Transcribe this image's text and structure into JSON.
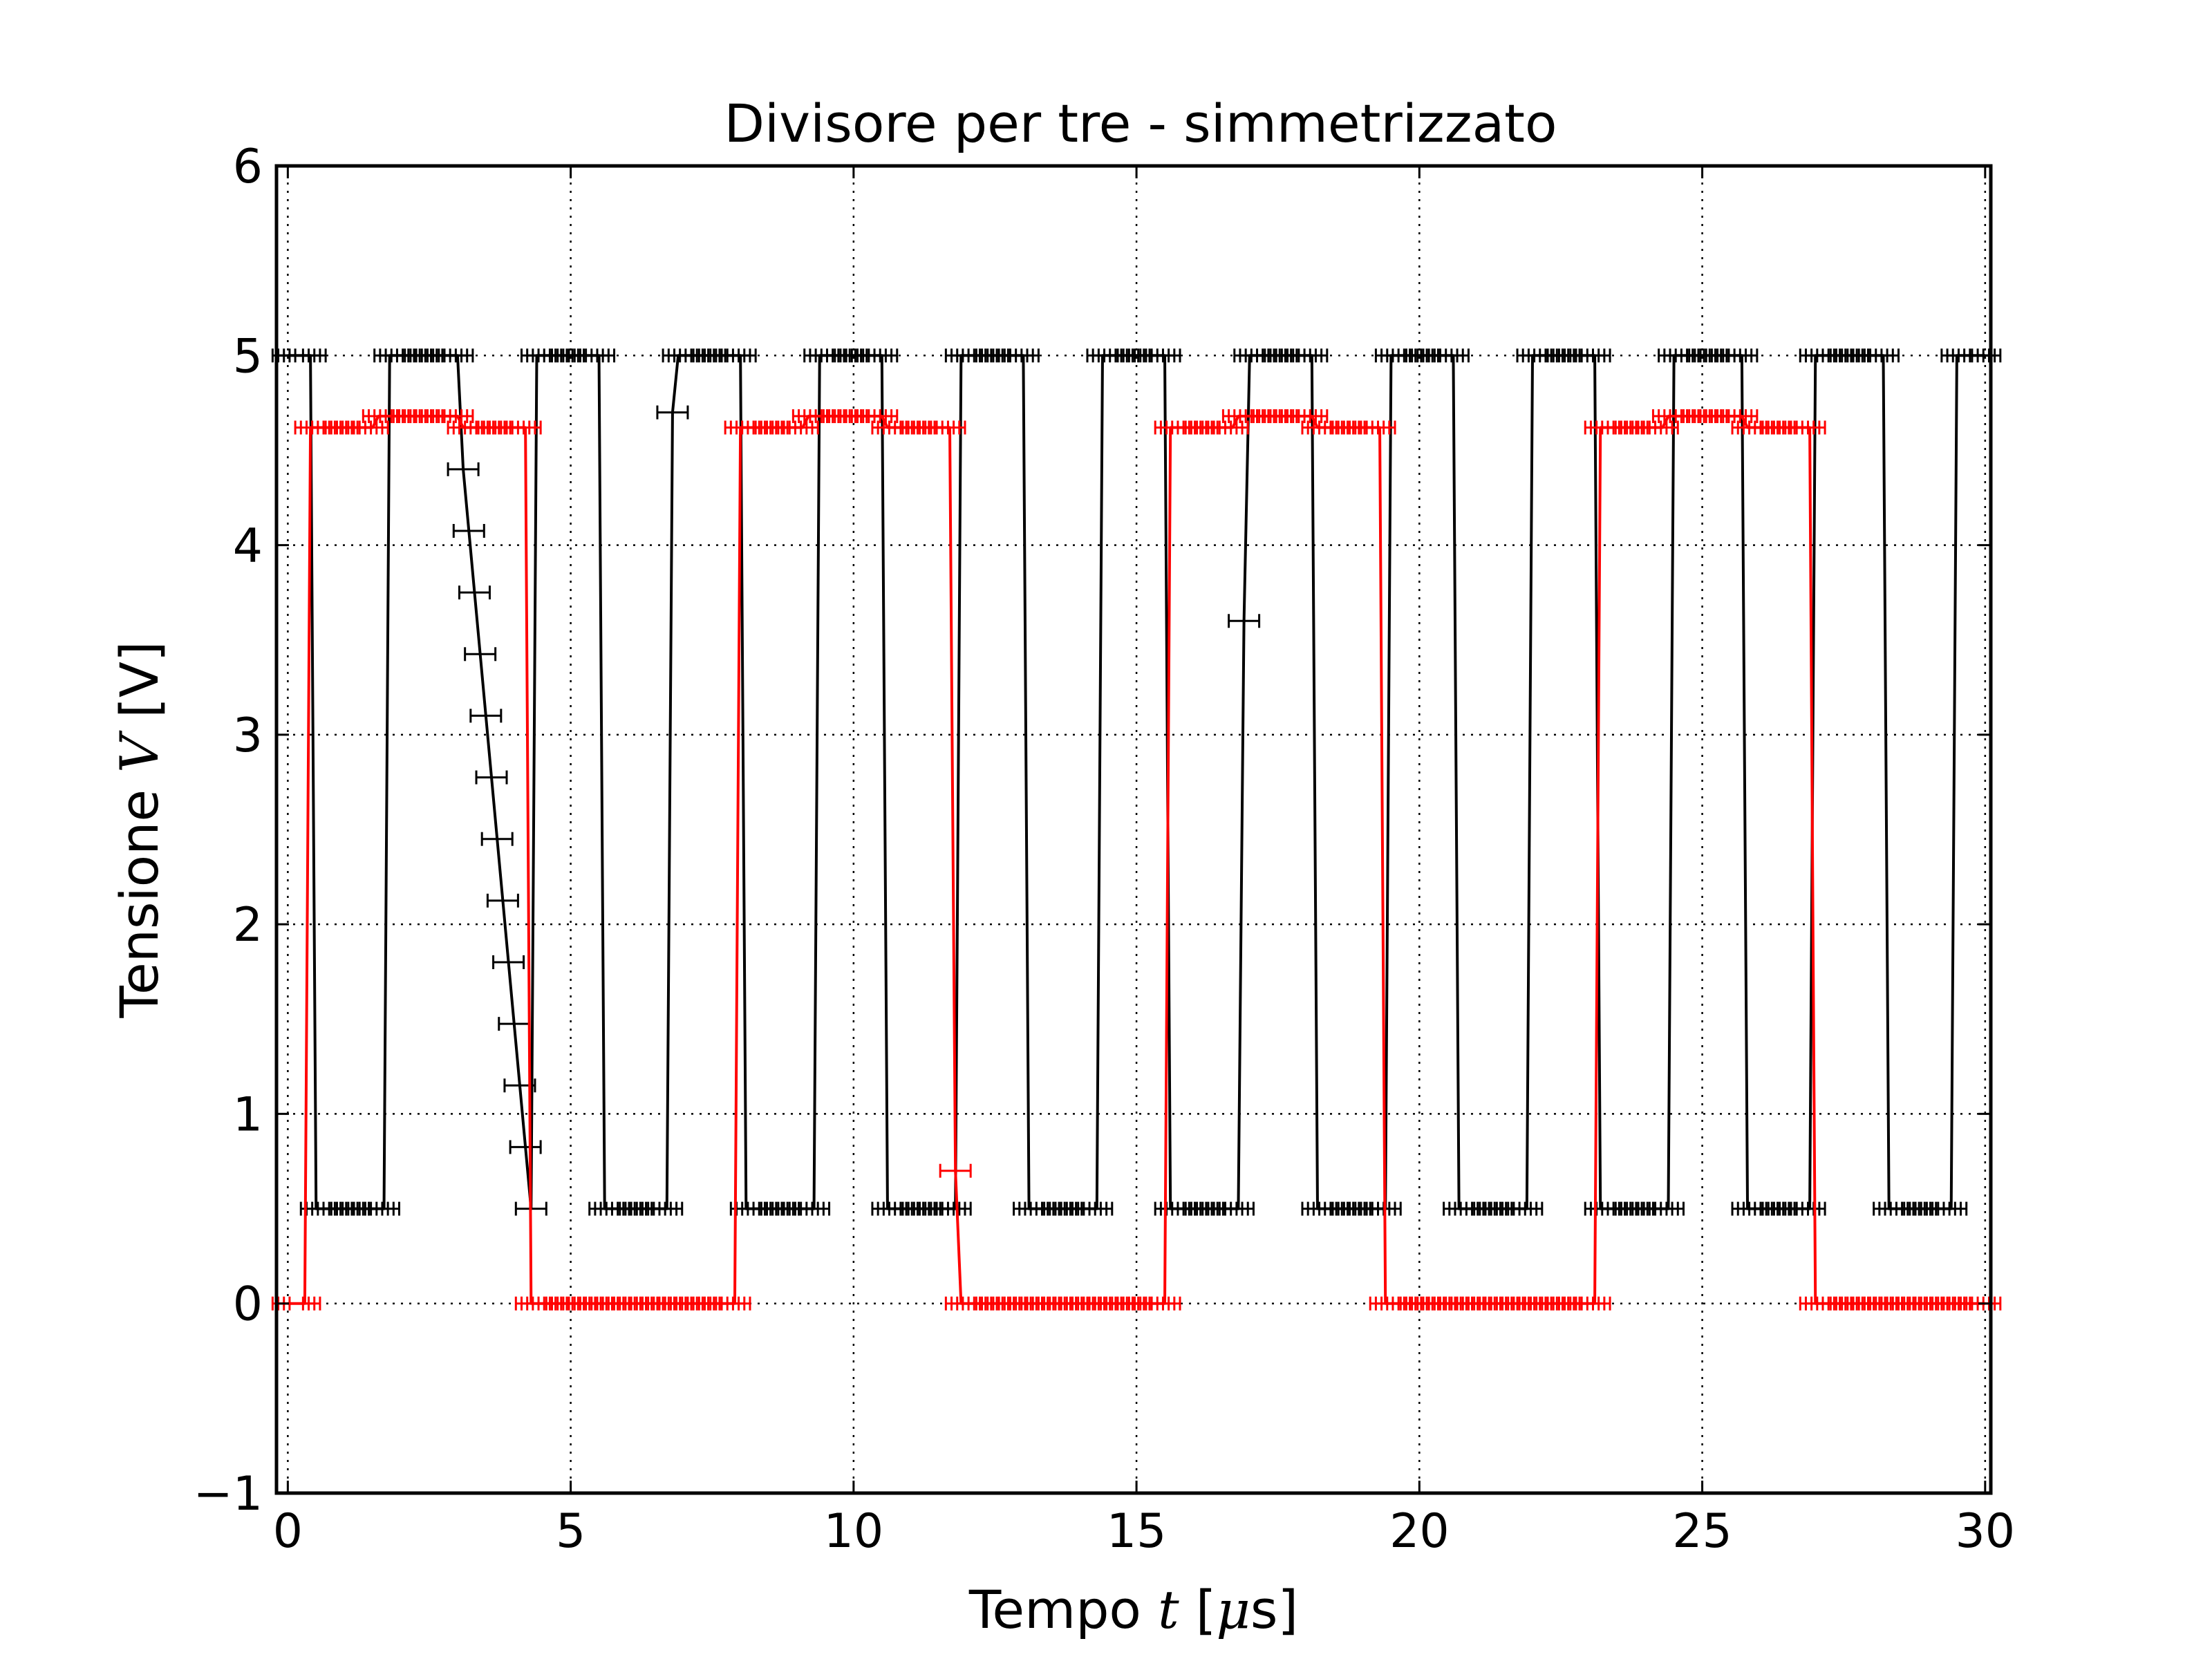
{
  "chart_data": {
    "type": "line",
    "title": "Divisore per tre - simmetrizzato",
    "xlabel": {
      "prefix": "Tempo ",
      "math": "t",
      "suffix": " [",
      "math2": "μ",
      "unit": "s]"
    },
    "ylabel": {
      "prefix": "Tensione ",
      "math": "V",
      "suffix": " [V]"
    },
    "xlim": [
      -0.2,
      30.1
    ],
    "ylim": [
      -1,
      6
    ],
    "xticks": [
      0,
      5,
      10,
      15,
      20,
      25,
      30
    ],
    "xtick_labels": [
      "0",
      "5",
      "10",
      "15",
      "20",
      "25",
      "30"
    ],
    "yticks": [
      -1,
      0,
      1,
      2,
      3,
      4,
      5,
      6
    ],
    "ytick_labels": [
      "−1",
      "0",
      "1",
      "2",
      "3",
      "4",
      "5",
      "6"
    ],
    "grid": true,
    "legend": null,
    "series": [
      {
        "color": "#000000",
        "marker": "errorbar",
        "x": [
          0.0,
          0.4,
          0.5,
          1.7,
          1.8,
          3.0,
          3.1,
          4.3,
          4.4,
          5.5,
          5.6,
          6.7,
          6.8,
          6.9,
          8.0,
          8.1,
          9.3,
          9.4,
          10.5,
          10.6,
          11.8,
          11.9,
          13.0,
          13.1,
          14.3,
          14.4,
          15.5,
          15.6,
          16.8,
          16.9,
          17.0,
          18.1,
          18.2,
          19.4,
          19.5,
          20.6,
          20.7,
          21.9,
          22.0,
          23.1,
          23.2,
          24.4,
          24.5,
          25.7,
          25.8,
          26.9,
          27.0,
          28.2,
          28.3,
          29.4,
          29.5,
          30.0
        ],
        "y": [
          5.0,
          5.0,
          0.5,
          0.5,
          5.0,
          5.0,
          4.4,
          0.5,
          5.0,
          5.0,
          0.5,
          0.5,
          4.7,
          5.0,
          5.0,
          0.5,
          0.5,
          5.0,
          5.0,
          0.5,
          0.5,
          5.0,
          5.0,
          0.5,
          0.5,
          5.0,
          5.0,
          0.5,
          0.5,
          3.6,
          5.0,
          5.0,
          0.5,
          0.5,
          5.0,
          5.0,
          0.5,
          0.5,
          5.0,
          5.0,
          0.5,
          0.5,
          5.0,
          5.0,
          0.5,
          0.5,
          5.0,
          5.0,
          0.5,
          0.5,
          5.0,
          5.0
        ]
      },
      {
        "color": "#ff0000",
        "marker": "errorbar",
        "x": [
          0.0,
          0.3,
          0.4,
          1.5,
          1.6,
          3.0,
          3.1,
          4.2,
          4.3,
          7.9,
          8.0,
          9.1,
          9.2,
          10.5,
          10.6,
          11.7,
          11.8,
          11.9,
          15.5,
          15.6,
          16.7,
          16.8,
          18.1,
          18.2,
          19.3,
          19.4,
          23.1,
          23.2,
          24.3,
          24.4,
          25.7,
          25.8,
          26.9,
          27.0,
          30.0
        ],
        "y": [
          0.0,
          0.0,
          4.62,
          4.62,
          4.68,
          4.68,
          4.62,
          4.62,
          0.0,
          0.0,
          4.62,
          4.62,
          4.68,
          4.68,
          4.62,
          4.62,
          0.7,
          0.0,
          0.0,
          4.62,
          4.62,
          4.68,
          4.68,
          4.62,
          4.62,
          0.0,
          0.0,
          4.62,
          4.62,
          4.68,
          4.68,
          4.62,
          4.62,
          0.0,
          0.0
        ]
      }
    ]
  }
}
